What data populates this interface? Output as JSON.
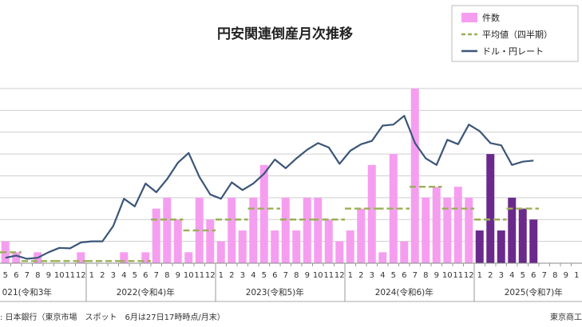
{
  "chart_data": {
    "type": "bar",
    "title": "円安関連倒産月次推移",
    "legend": {
      "placement": "top-right",
      "entries": [
        {
          "label": "件数",
          "kind": "bar",
          "color": "#f59ef0"
        },
        {
          "label": "平均値（四半期）",
          "kind": "dash",
          "color": "#9ab055"
        },
        {
          "label": "ドル・円レート",
          "kind": "line",
          "color": "#3b5678"
        }
      ]
    },
    "ylim": [
      0,
      8
    ],
    "yTickStep": 1,
    "x_month_labels": [
      "5",
      "6",
      "7",
      "8",
      "9",
      "10",
      "11",
      "12",
      "1",
      "2",
      "3",
      "4",
      "5",
      "6",
      "7",
      "8",
      "9",
      "10",
      "11",
      "12",
      "1",
      "2",
      "3",
      "4",
      "5",
      "6",
      "7",
      "8",
      "9",
      "10",
      "11",
      "12",
      "1",
      "2",
      "3",
      "4",
      "5",
      "6",
      "7",
      "8",
      "9",
      "10",
      "11",
      "12",
      "1",
      "2",
      "3",
      "4",
      "5",
      "6",
      "7",
      "8",
      "9",
      "1"
    ],
    "year_labels": [
      "021(令和3年",
      "2022(令和4)年",
      "2023(令和5)年",
      "2024(令和6)年",
      "2025(令和7)年"
    ],
    "year_group_ends": [
      7,
      19,
      31,
      43
    ],
    "year_label_index": [
      2.5,
      13.5,
      25.5,
      37.5,
      49.5
    ],
    "counts": [
      1,
      0.5,
      0,
      0.5,
      0,
      0,
      0,
      0.5,
      0,
      0,
      0,
      0.5,
      0,
      0.5,
      2.5,
      3,
      2,
      0.5,
      3,
      2,
      1,
      3,
      1.5,
      3,
      4.5,
      1.5,
      3,
      1.5,
      3,
      3,
      2,
      1,
      1.5,
      2.5,
      4.5,
      0.5,
      5,
      1,
      8,
      3,
      3.5,
      3,
      3.5,
      3,
      1.5,
      5,
      1.5,
      3,
      2.5,
      2,
      null,
      null,
      null,
      null
    ],
    "highlight_from_index": 44,
    "bar_colors": {
      "normal": "#f59ef0",
      "highlight": "#6a2a8b"
    },
    "quarter_avg": [
      {
        "from": 0,
        "to": 1,
        "value": 0.5
      },
      {
        "from": 2,
        "to": 4,
        "value": 0.1
      },
      {
        "from": 5,
        "to": 7,
        "value": 0.1
      },
      {
        "from": 8,
        "to": 10,
        "value": 0.1
      },
      {
        "from": 11,
        "to": 13,
        "value": 0.1
      },
      {
        "from": 14,
        "to": 16,
        "value": 2
      },
      {
        "from": 17,
        "to": 19,
        "value": 1.5
      },
      {
        "from": 20,
        "to": 22,
        "value": 2
      },
      {
        "from": 23,
        "to": 25,
        "value": 2.5
      },
      {
        "from": 26,
        "to": 28,
        "value": 2
      },
      {
        "from": 29,
        "to": 31,
        "value": 2
      },
      {
        "from": 32,
        "to": 34,
        "value": 2.5
      },
      {
        "from": 35,
        "to": 37,
        "value": 2.5
      },
      {
        "from": 38,
        "to": 40,
        "value": 3.5
      },
      {
        "from": 41,
        "to": 43,
        "value": 2.5
      },
      {
        "from": 44,
        "to": 46,
        "value": 2
      },
      {
        "from": 47,
        "to": 49,
        "value": 2.5
      }
    ],
    "fx_line": [
      0.25,
      0.35,
      0.2,
      0.25,
      0.5,
      0.7,
      0.68,
      0.95,
      1,
      1,
      1.7,
      2.95,
      2.6,
      3.65,
      3.25,
      3.85,
      4.6,
      5.05,
      3.95,
      3.15,
      2.95,
      3.7,
      3.35,
      3.65,
      4.1,
      4.75,
      4.35,
      4.8,
      5.2,
      5.5,
      5.3,
      4.55,
      5.15,
      5.45,
      5.6,
      6.3,
      6.35,
      6.75,
      5.5,
      4.8,
      4.5,
      5.65,
      5.45,
      6.35,
      6.05,
      5.5,
      5.4,
      4.5,
      4.65,
      4.7,
      null,
      null,
      null,
      null
    ],
    "source_note": ": 日本銀行（東京市場　スポット　6月は27日17時時点/月末）",
    "credit": "東京商工"
  }
}
